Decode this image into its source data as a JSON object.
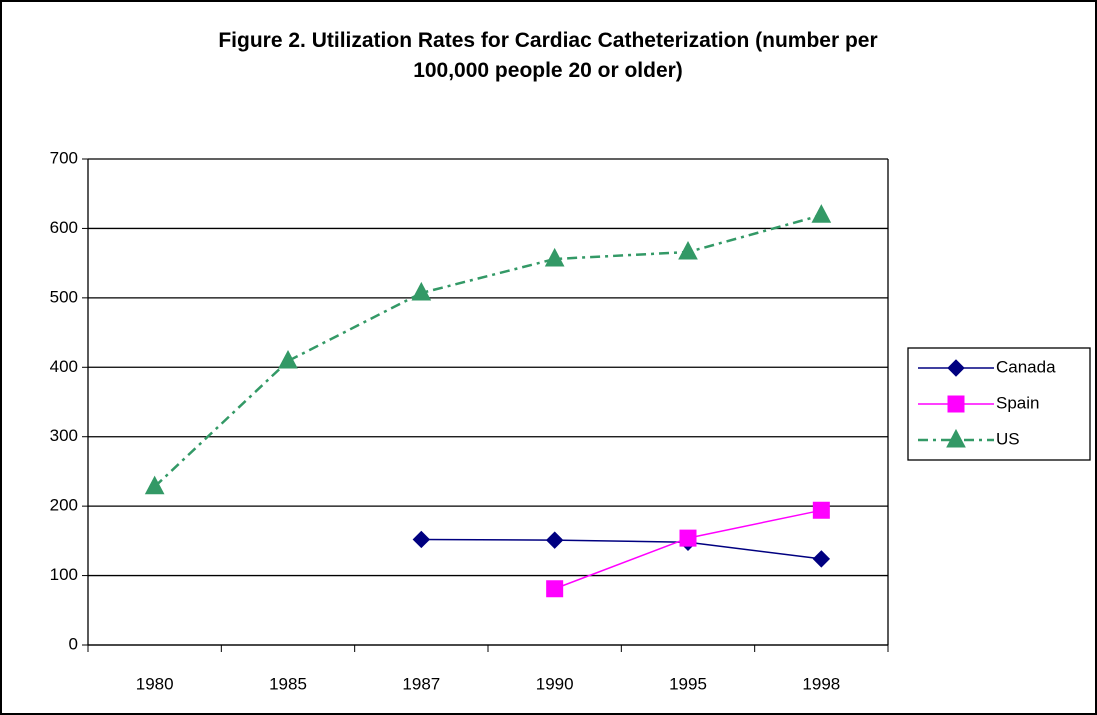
{
  "chart_data": {
    "type": "line",
    "title": "Figure 2. Utilization Rates for Cardiac Catheterization (number per 100,000 people 20 or older)",
    "categories": [
      "1980",
      "1985",
      "1987",
      "1990",
      "1995",
      "1998"
    ],
    "series": [
      {
        "name": "Canada",
        "color": "#000080",
        "marker": "diamond",
        "linestyle": "solid",
        "values": [
          null,
          null,
          152,
          151,
          148,
          124
        ]
      },
      {
        "name": "Spain",
        "color": "#ff00ff",
        "marker": "square",
        "linestyle": "solid",
        "values": [
          null,
          null,
          null,
          81,
          154,
          194
        ]
      },
      {
        "name": "US",
        "color": "#339966",
        "marker": "triangle",
        "linestyle": "dashdot",
        "values": [
          228,
          409,
          507,
          556,
          566,
          619
        ]
      }
    ],
    "ylim": [
      0,
      700
    ],
    "yticks": [
      0,
      100,
      200,
      300,
      400,
      500,
      600,
      700
    ],
    "grid": true,
    "legend": "right"
  }
}
